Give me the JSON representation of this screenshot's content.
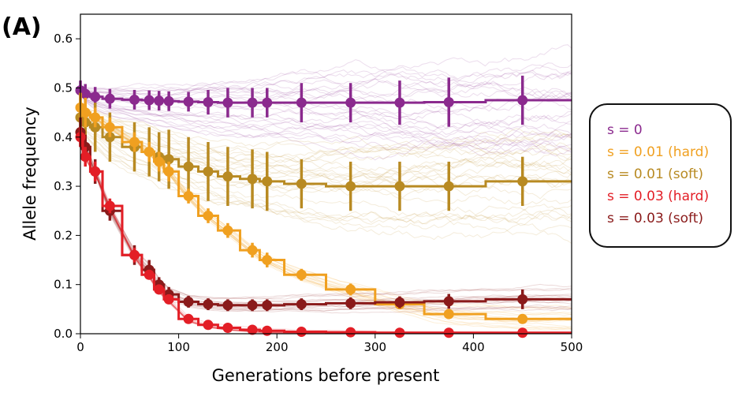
{
  "panel_label": "(A)",
  "chart_data": {
    "type": "line",
    "title": "",
    "xlabel": "Generations before present",
    "ylabel": "Allele frequency",
    "xlim": [
      0,
      500
    ],
    "ylim": [
      0,
      0.65
    ],
    "xticks": [
      "0",
      "100",
      "200",
      "300",
      "400",
      "500"
    ],
    "yticks": [
      "0.0",
      "0.1",
      "0.2",
      "0.3",
      "0.4",
      "0.5",
      "0.6"
    ],
    "grid": false,
    "legend_position": "right",
    "series": [
      {
        "name": "s = 0",
        "color": "#8b2a8e",
        "x": [
          0,
          5,
          15,
          30,
          55,
          70,
          80,
          90,
          110,
          130,
          150,
          175,
          190,
          225,
          275,
          325,
          375,
          450
        ],
        "y": [
          0.495,
          0.488,
          0.482,
          0.478,
          0.476,
          0.475,
          0.474,
          0.473,
          0.472,
          0.471,
          0.47,
          0.47,
          0.47,
          0.47,
          0.47,
          0.47,
          0.471,
          0.475
        ],
        "err": [
          0.02,
          0.02,
          0.02,
          0.02,
          0.02,
          0.02,
          0.02,
          0.02,
          0.02,
          0.025,
          0.03,
          0.03,
          0.03,
          0.04,
          0.04,
          0.045,
          0.05,
          0.05
        ]
      },
      {
        "name": "s = 0.01 (hard)",
        "color": "#f0a020",
        "x": [
          0,
          5,
          15,
          30,
          55,
          70,
          80,
          90,
          110,
          130,
          150,
          175,
          190,
          225,
          275,
          325,
          375,
          450
        ],
        "y": [
          0.46,
          0.45,
          0.44,
          0.42,
          0.39,
          0.37,
          0.35,
          0.33,
          0.28,
          0.24,
          0.21,
          0.17,
          0.15,
          0.12,
          0.09,
          0.06,
          0.04,
          0.03
        ],
        "err": [
          0.03,
          0.03,
          0.02,
          0.02,
          0.02,
          0.02,
          0.02,
          0.02,
          0.015,
          0.015,
          0.015,
          0.015,
          0.015,
          0.012,
          0.012,
          0.01,
          0.01,
          0.01
        ]
      },
      {
        "name": "s = 0.01 (soft)",
        "color": "#b88a22",
        "x": [
          0,
          5,
          15,
          30,
          55,
          70,
          80,
          90,
          110,
          130,
          150,
          175,
          190,
          225,
          275,
          325,
          375,
          450
        ],
        "y": [
          0.44,
          0.43,
          0.42,
          0.4,
          0.38,
          0.37,
          0.36,
          0.355,
          0.34,
          0.33,
          0.32,
          0.315,
          0.31,
          0.305,
          0.3,
          0.3,
          0.3,
          0.31
        ],
        "err": [
          0.05,
          0.05,
          0.05,
          0.05,
          0.05,
          0.05,
          0.05,
          0.06,
          0.06,
          0.06,
          0.06,
          0.06,
          0.06,
          0.05,
          0.05,
          0.05,
          0.05,
          0.05
        ]
      },
      {
        "name": "s = 0.03 (hard)",
        "color": "#e31e26",
        "x": [
          0,
          5,
          15,
          30,
          55,
          70,
          80,
          90,
          110,
          130,
          150,
          175,
          190,
          225,
          275,
          325,
          375,
          450
        ],
        "y": [
          0.4,
          0.36,
          0.33,
          0.26,
          0.16,
          0.12,
          0.09,
          0.07,
          0.03,
          0.018,
          0.012,
          0.008,
          0.006,
          0.004,
          0.003,
          0.002,
          0.002,
          0.002
        ],
        "err": [
          0.02,
          0.02,
          0.02,
          0.015,
          0.015,
          0.01,
          0.01,
          0.01,
          0.008,
          0.005,
          0.004,
          0.003,
          0.003,
          0.002,
          0.002,
          0.002,
          0.002,
          0.002
        ]
      },
      {
        "name": "s = 0.03 (soft)",
        "color": "#8a1a1a",
        "x": [
          0,
          5,
          15,
          30,
          55,
          70,
          80,
          90,
          110,
          130,
          150,
          175,
          190,
          225,
          275,
          325,
          375,
          450
        ],
        "y": [
          0.41,
          0.38,
          0.33,
          0.25,
          0.16,
          0.13,
          0.1,
          0.08,
          0.065,
          0.06,
          0.058,
          0.058,
          0.058,
          0.06,
          0.062,
          0.064,
          0.066,
          0.07
        ],
        "err": [
          0.03,
          0.025,
          0.025,
          0.02,
          0.02,
          0.02,
          0.015,
          0.015,
          0.012,
          0.012,
          0.012,
          0.012,
          0.012,
          0.012,
          0.012,
          0.012,
          0.015,
          0.02
        ]
      }
    ]
  }
}
